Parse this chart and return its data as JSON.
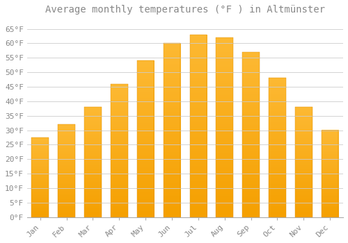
{
  "title": "Average monthly temperatures (°F ) in Altmünster",
  "months": [
    "Jan",
    "Feb",
    "Mar",
    "Apr",
    "May",
    "Jun",
    "Jul",
    "Aug",
    "Sep",
    "Oct",
    "Nov",
    "Dec"
  ],
  "values": [
    27.5,
    32.0,
    38.0,
    46.0,
    54.0,
    60.0,
    63.0,
    62.0,
    57.0,
    48.0,
    38.0,
    30.0
  ],
  "bar_color_top": "#FDB933",
  "bar_color_bottom": "#F5A000",
  "background_color": "#FFFFFF",
  "grid_color": "#CCCCCC",
  "text_color": "#888888",
  "ylim": [
    0,
    68
  ],
  "yticks": [
    0,
    5,
    10,
    15,
    20,
    25,
    30,
    35,
    40,
    45,
    50,
    55,
    60,
    65
  ],
  "title_fontsize": 10,
  "tick_fontsize": 8,
  "font_family": "monospace",
  "bar_width": 0.65
}
